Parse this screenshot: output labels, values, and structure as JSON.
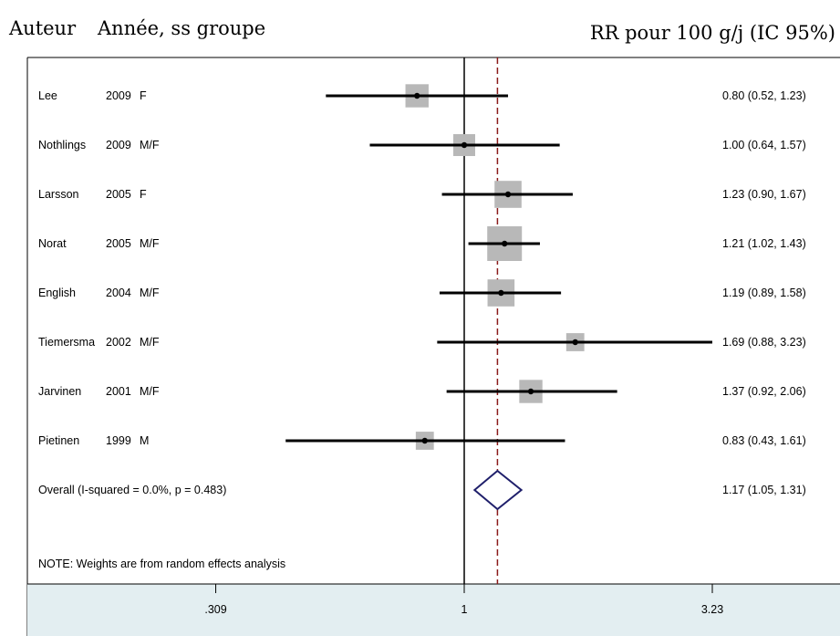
{
  "header": {
    "author": "Auteur",
    "year_group": "Année, ss groupe",
    "effect": "RR pour 100 g/j (IC 95%)"
  },
  "note": "NOTE: Weights are from random effects analysis",
  "colors": {
    "axis_band": "#e3eef1",
    "weight_box": "#b8b8b8",
    "ci_line": "#000000",
    "overall_diamond": "#1f1f6b",
    "overall_line": "#8b1a1a"
  },
  "chart_data": {
    "type": "forest",
    "x_scale": "log",
    "x_ticks": [
      {
        "value": 0.309,
        "label": ".309"
      },
      {
        "value": 1,
        "label": "1"
      },
      {
        "value": 3.23,
        "label": "3.23"
      }
    ],
    "null_value": 1,
    "studies": [
      {
        "author": "Lee",
        "year": "2009",
        "group": "F",
        "rr": 0.8,
        "lo": 0.52,
        "hi": 1.23,
        "text": "0.80 (0.52, 1.23)",
        "weight": 0.55
      },
      {
        "author": "Nothlings",
        "year": "2009",
        "group": "M/F",
        "rr": 1.0,
        "lo": 0.64,
        "hi": 1.57,
        "text": "1.00 (0.64, 1.57)",
        "weight": 0.5
      },
      {
        "author": "Larsson",
        "year": "2005",
        "group": "F",
        "rr": 1.23,
        "lo": 0.9,
        "hi": 1.67,
        "text": "1.23 (0.90, 1.67)",
        "weight": 0.7
      },
      {
        "author": "Norat",
        "year": "2005",
        "group": "M/F",
        "rr": 1.21,
        "lo": 1.02,
        "hi": 1.43,
        "text": "1.21 (1.02, 1.43)",
        "weight": 1.0
      },
      {
        "author": "English",
        "year": "2004",
        "group": "M/F",
        "rr": 1.19,
        "lo": 0.89,
        "hi": 1.58,
        "text": "1.19 (0.89, 1.58)",
        "weight": 0.7
      },
      {
        "author": "Tiemersma",
        "year": "2002",
        "group": "M/F",
        "rr": 1.69,
        "lo": 0.88,
        "hi": 3.23,
        "text": "1.69 (0.88, 3.23)",
        "weight": 0.35
      },
      {
        "author": "Jarvinen",
        "year": "2001",
        "group": "M/F",
        "rr": 1.37,
        "lo": 0.92,
        "hi": 2.06,
        "text": "1.37 (0.92, 2.06)",
        "weight": 0.55
      },
      {
        "author": "Pietinen",
        "year": "1999",
        "group": "M",
        "rr": 0.83,
        "lo": 0.43,
        "hi": 1.61,
        "text": "0.83 (0.43, 1.61)",
        "weight": 0.35
      }
    ],
    "overall": {
      "label": "Overall  (I-squared = 0.0%, p = 0.483)",
      "rr": 1.17,
      "lo": 1.05,
      "hi": 1.31,
      "text": "1.17 (1.05, 1.31)"
    }
  }
}
